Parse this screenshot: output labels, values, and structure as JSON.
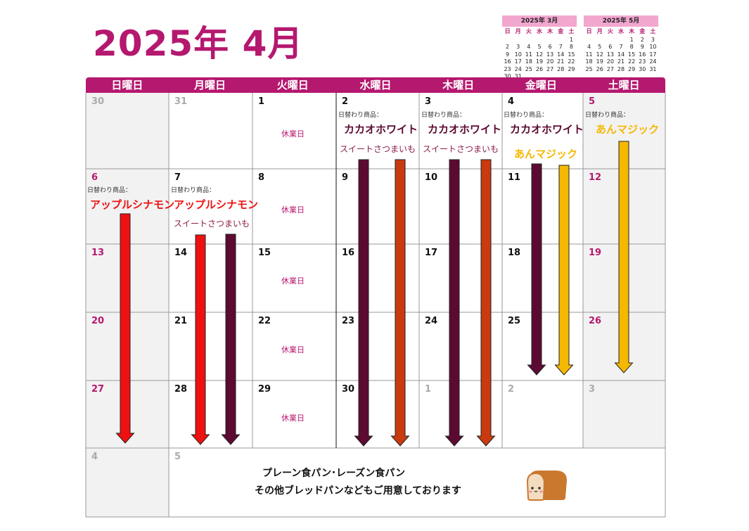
{
  "title": "2025年 4月",
  "mini_march": {
    "header": "2025年 3月",
    "dow": [
      "日",
      "月",
      "火",
      "水",
      "木",
      "金",
      "土"
    ],
    "days": [
      "",
      "",
      "",
      "",
      "",
      "",
      "1",
      "2",
      "3",
      "4",
      "5",
      "6",
      "7",
      "8",
      "9",
      "10",
      "11",
      "12",
      "13",
      "14",
      "15",
      "16",
      "17",
      "18",
      "19",
      "20",
      "21",
      "22",
      "23",
      "24",
      "25",
      "26",
      "27",
      "28",
      "29",
      "30",
      "31",
      "",
      "",
      "",
      "",
      ""
    ]
  },
  "mini_may": {
    "header": "2025年 5月",
    "dow": [
      "日",
      "月",
      "火",
      "水",
      "木",
      "金",
      "土"
    ],
    "days": [
      "",
      "",
      "",
      "",
      "1",
      "2",
      "3",
      "4",
      "5",
      "6",
      "7",
      "8",
      "9",
      "10",
      "11",
      "12",
      "13",
      "14",
      "15",
      "16",
      "17",
      "18",
      "19",
      "20",
      "21",
      "22",
      "23",
      "24",
      "25",
      "26",
      "27",
      "28",
      "29",
      "30",
      "31"
    ]
  },
  "weekdays": [
    "日曜日",
    "月曜日",
    "火曜日",
    "水曜日",
    "木曜日",
    "金曜日",
    "土曜日"
  ],
  "daily_label": "日替わり商品：",
  "closed_label": "休業日",
  "products": {
    "cacao": "カカオホワイト",
    "sweet_potato": "スイートさつまいも",
    "anmagic": "あんマジック",
    "apple": "アップルシナモン"
  },
  "cells": [
    [
      "30",
      "31",
      "1",
      "2",
      "3",
      "4",
      "5"
    ],
    [
      "6",
      "7",
      "8",
      "9",
      "10",
      "11",
      "12"
    ],
    [
      "13",
      "14",
      "15",
      "16",
      "17",
      "18",
      "19"
    ],
    [
      "20",
      "21",
      "22",
      "23",
      "24",
      "25",
      "26"
    ],
    [
      "27",
      "28",
      "29",
      "30",
      "1",
      "2",
      "3"
    ],
    [
      "4",
      "5"
    ]
  ],
  "footer": {
    "line1": "プレーン食パン･レーズン食パン",
    "line2": "その他ブレッドパンなどもご用意しております"
  },
  "colors": {
    "accent": "#b5186f",
    "mini_header": "#f2a7cf",
    "cacao_arrow": "#5c0a32",
    "sweet_arrow": "#c93a0e",
    "anmagic_arrow": "#f5b800",
    "apple_arrow": "#ee1111"
  }
}
